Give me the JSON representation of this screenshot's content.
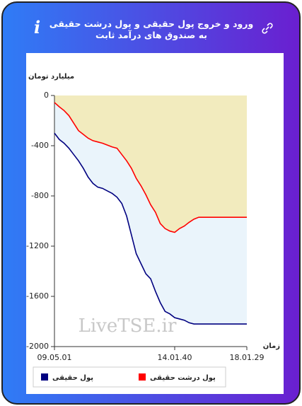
{
  "chart_data": {
    "type": "line",
    "title": "ورود و خروج پول حقیقی و پول درشت حقیقی به صندوق های درآمد ثابت",
    "y_label": "میلیارد تومان",
    "x_label": "زمان",
    "watermark": "LiveTSE.ir",
    "categories": [
      "09.05.01",
      null,
      null,
      null,
      null,
      null,
      null,
      null,
      null,
      null,
      null,
      null,
      null,
      null,
      null,
      null,
      null,
      null,
      null,
      null,
      null,
      null,
      null,
      null,
      null,
      "14.01.40",
      null,
      null,
      null,
      null,
      null,
      null,
      null,
      null,
      null,
      null,
      null,
      null,
      null,
      null,
      "18.01.29"
    ],
    "series": [
      {
        "name": "پول حقیقی",
        "color": "#000080",
        "fill": "#eaf4fb",
        "values": [
          -300,
          -350,
          -380,
          -420,
          -470,
          -520,
          -580,
          -650,
          -700,
          -730,
          -740,
          -760,
          -780,
          -810,
          -860,
          -960,
          -1110,
          -1260,
          -1340,
          -1420,
          -1460,
          -1560,
          -1650,
          -1720,
          -1740,
          -1770,
          -1780,
          -1790,
          -1810,
          -1820,
          -1820,
          -1820,
          -1820,
          -1820,
          -1820,
          -1820,
          -1820,
          -1820,
          -1820,
          -1820,
          -1820
        ]
      },
      {
        "name": "پول درشت حقیقی",
        "color": "#ff0000",
        "fill": "#f2ebbe",
        "values": [
          -56,
          -90,
          -120,
          -160,
          -220,
          -280,
          -310,
          -340,
          -360,
          -370,
          -380,
          -395,
          -410,
          -420,
          -470,
          -520,
          -580,
          -660,
          -720,
          -790,
          -870,
          -930,
          -1020,
          -1060,
          -1080,
          -1090,
          -1060,
          -1040,
          -1010,
          -985,
          -970,
          -970,
          -970,
          -970,
          -970,
          -970,
          -970,
          -970,
          -970,
          -970,
          -970
        ]
      }
    ],
    "ylim": [
      -2000,
      0
    ],
    "yticks": [
      0,
      -400,
      -800,
      -1200,
      -1600,
      -2000
    ],
    "legend": "bottom"
  }
}
